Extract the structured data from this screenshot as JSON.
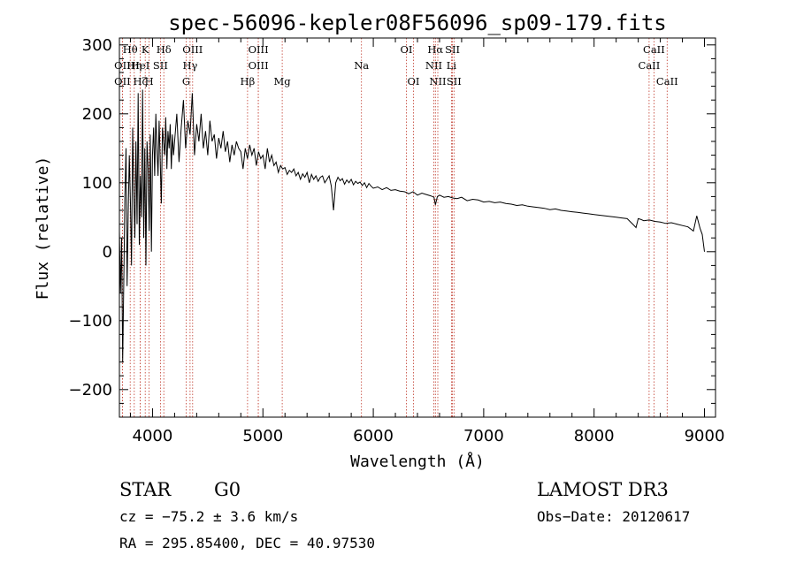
{
  "chart_data": {
    "type": "line",
    "title": "spec-56096-kepler08F56096_sp09-179.fits",
    "xlabel": "Wavelength (Å)",
    "ylabel": "Flux (relative)",
    "xlim": [
      3700,
      9100
    ],
    "ylim": [
      -240,
      310
    ],
    "xticks": [
      4000,
      5000,
      6000,
      7000,
      8000,
      9000
    ],
    "xtick_labels": [
      "4000",
      "5000",
      "6000",
      "7000",
      "8000",
      "9000"
    ],
    "yticks": [
      -200,
      -100,
      0,
      100,
      200,
      300
    ],
    "ytick_labels": [
      "−200",
      "−100",
      "0",
      "100",
      "200",
      "300"
    ],
    "series": [
      {
        "name": "Flux",
        "x": [
          3700,
          3710,
          3720,
          3730,
          3740,
          3750,
          3760,
          3770,
          3780,
          3790,
          3800,
          3810,
          3820,
          3830,
          3840,
          3850,
          3860,
          3870,
          3880,
          3890,
          3900,
          3910,
          3920,
          3930,
          3940,
          3950,
          3960,
          3970,
          3980,
          3990,
          4000,
          4010,
          4020,
          4030,
          4040,
          4050,
          4060,
          4070,
          4080,
          4090,
          4100,
          4110,
          4120,
          4130,
          4140,
          4150,
          4160,
          4170,
          4180,
          4190,
          4200,
          4220,
          4240,
          4260,
          4280,
          4300,
          4320,
          4340,
          4360,
          4380,
          4400,
          4420,
          4440,
          4460,
          4480,
          4500,
          4520,
          4540,
          4560,
          4580,
          4600,
          4620,
          4640,
          4660,
          4680,
          4700,
          4720,
          4740,
          4760,
          4780,
          4800,
          4820,
          4840,
          4860,
          4880,
          4900,
          4920,
          4940,
          4960,
          4980,
          5000,
          5020,
          5040,
          5060,
          5080,
          5100,
          5120,
          5140,
          5160,
          5180,
          5200,
          5220,
          5240,
          5260,
          5280,
          5300,
          5320,
          5340,
          5360,
          5380,
          5400,
          5420,
          5440,
          5460,
          5480,
          5500,
          5520,
          5540,
          5560,
          5580,
          5600,
          5620,
          5640,
          5660,
          5680,
          5700,
          5720,
          5740,
          5760,
          5780,
          5800,
          5820,
          5840,
          5860,
          5880,
          5900,
          5920,
          5940,
          5960,
          5980,
          6000,
          6040,
          6080,
          6120,
          6160,
          6200,
          6240,
          6280,
          6300,
          6320,
          6360,
          6400,
          6440,
          6480,
          6520,
          6550,
          6563,
          6580,
          6600,
          6640,
          6680,
          6720,
          6760,
          6800,
          6850,
          6900,
          6950,
          7000,
          7050,
          7100,
          7150,
          7200,
          7250,
          7300,
          7350,
          7400,
          7450,
          7500,
          7550,
          7600,
          7650,
          7700,
          7750,
          7800,
          7850,
          7900,
          7950,
          8000,
          8050,
          8100,
          8150,
          8200,
          8250,
          8300,
          8350,
          8380,
          8400,
          8420,
          8450,
          8500,
          8550,
          8600,
          8650,
          8700,
          8750,
          8800,
          8850,
          8900,
          8930,
          8960,
          8980,
          9000
        ],
        "values": [
          30,
          -60,
          20,
          -160,
          -40,
          80,
          150,
          -50,
          60,
          140,
          70,
          -20,
          180,
          90,
          20,
          160,
          40,
          230,
          10,
          110,
          50,
          235,
          20,
          150,
          -20,
          160,
          120,
          30,
          170,
          0,
          140,
          180,
          110,
          200,
          150,
          110,
          190,
          130,
          70,
          180,
          160,
          140,
          195,
          120,
          175,
          150,
          185,
          120,
          170,
          140,
          160,
          200,
          130,
          180,
          220,
          150,
          190,
          170,
          230,
          140,
          185,
          160,
          200,
          150,
          175,
          140,
          190,
          160,
          170,
          135,
          165,
          150,
          175,
          145,
          160,
          130,
          155,
          140,
          160,
          150,
          145,
          120,
          150,
          135,
          155,
          140,
          150,
          125,
          145,
          135,
          140,
          120,
          150,
          130,
          140,
          125,
          130,
          115,
          125,
          120,
          122,
          112,
          118,
          115,
          120,
          110,
          115,
          105,
          113,
          108,
          115,
          100,
          112,
          105,
          110,
          102,
          108,
          110,
          100,
          105,
          110,
          95,
          60,
          100,
          108,
          103,
          106,
          98,
          104,
          100,
          105,
          97,
          102,
          99,
          101,
          96,
          100,
          93,
          99,
          95,
          92,
          94,
          90,
          93,
          89,
          90,
          88,
          87,
          86,
          84,
          87,
          82,
          85,
          83,
          81,
          79,
          68,
          80,
          82,
          79,
          80,
          78,
          77,
          79,
          74,
          76,
          75,
          72,
          73,
          71,
          72,
          70,
          69,
          67,
          68,
          66,
          65,
          64,
          63,
          61,
          62,
          60,
          59,
          58,
          57,
          56,
          55,
          54,
          53,
          52,
          51,
          50,
          49,
          48,
          40,
          35,
          48,
          47,
          45,
          46,
          44,
          43,
          41,
          42,
          40,
          38,
          36,
          30,
          52,
          34,
          25,
          0
        ]
      }
    ],
    "spectral_lines": [
      {
        "label": "Hθ",
        "x": 3798,
        "row": 1
      },
      {
        "label": "K",
        "x": 3934,
        "row": 1
      },
      {
        "label": "Hδ",
        "x": 4102,
        "row": 1
      },
      {
        "label": "OIII",
        "x": 4363,
        "row": 1
      },
      {
        "label": "OIII",
        "x": 4959,
        "row": 1
      },
      {
        "label": "OI",
        "x": 6300,
        "row": 1
      },
      {
        "label": "Hα",
        "x": 6563,
        "row": 1
      },
      {
        "label": "SII",
        "x": 6717,
        "row": 1
      },
      {
        "label": "CaII",
        "x": 8542,
        "row": 1
      },
      {
        "label": "OII",
        "x": 3727,
        "row": 2
      },
      {
        "label": "Hη",
        "x": 3835,
        "row": 2
      },
      {
        "label": "HeI",
        "x": 3889,
        "row": 2
      },
      {
        "label": "SII",
        "x": 4072,
        "row": 2
      },
      {
        "label": "Hγ",
        "x": 4340,
        "row": 2
      },
      {
        "label": "OIII",
        "x": 4959,
        "row": 2
      },
      {
        "label": "NII",
        "x": 6548,
        "row": 2
      },
      {
        "label": "Li",
        "x": 6708,
        "row": 2
      },
      {
        "label": "CaII",
        "x": 8498,
        "row": 2
      },
      {
        "label": "OII",
        "x": 3727,
        "row": 3
      },
      {
        "label": "Hζ",
        "x": 3889,
        "row": 3
      },
      {
        "label": "H",
        "x": 3969,
        "row": 3
      },
      {
        "label": "G",
        "x": 4305,
        "row": 3
      },
      {
        "label": "Hβ",
        "x": 4861,
        "row": 3
      },
      {
        "label": "Mg",
        "x": 5175,
        "row": 3
      },
      {
        "label": "Na",
        "x": 5893,
        "row": 2
      },
      {
        "label": "OI",
        "x": 6364,
        "row": 3
      },
      {
        "label": "NII",
        "x": 6584,
        "row": 3
      },
      {
        "label": "SII",
        "x": 6731,
        "row": 3
      },
      {
        "label": "CaII",
        "x": 8662,
        "row": 3
      }
    ],
    "line_color": "#000000",
    "marker_color": "#c0392b"
  },
  "info": {
    "object_type": "STAR",
    "subclass": "G0",
    "survey": "LAMOST DR3",
    "cz": "cz = −75.2 ± 3.6 km/s",
    "obs_date": "Obs−Date: 20120617",
    "radec": "RA = 295.85400, DEC =  40.97530"
  }
}
